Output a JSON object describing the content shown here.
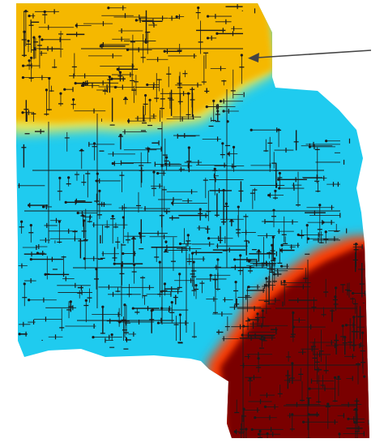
{
  "diagram": {
    "description_visible_text": "",
    "regions": [
      {
        "name": "north-region",
        "color": "#F5B800"
      },
      {
        "name": "central-region",
        "color": "#1FCBEF"
      },
      {
        "name": "southeast-region",
        "color": "#7A0000"
      }
    ],
    "boundary_blend_colors": [
      "#E7E85A",
      "#FF3A00",
      "#E8D07A"
    ],
    "network_line_color": "#1a1a1a",
    "pointer": {
      "name": "arrow-pointer",
      "color": "#444444"
    }
  }
}
